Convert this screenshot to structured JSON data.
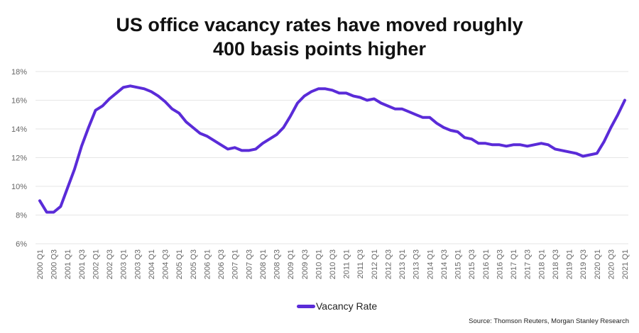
{
  "chart_data": {
    "type": "line",
    "title": [
      "US office vacancy rates have moved roughly",
      "400 basis points higher"
    ],
    "xlabel": "",
    "ylabel": "",
    "ylim": [
      6,
      18
    ],
    "yticks": [
      "6%",
      "8%",
      "10%",
      "12%",
      "14%",
      "16%",
      "18%"
    ],
    "ytick_values": [
      6,
      8,
      10,
      12,
      14,
      16,
      18
    ],
    "grid": true,
    "legend_placement": "bottom",
    "line_color": "#5a2bd8",
    "x_start": "2000 Q1",
    "x_end": "2021 Q1",
    "x_tick_step_quarters": 2,
    "series": [
      {
        "name": "Vacancy Rate",
        "values": [
          9.0,
          8.2,
          8.2,
          8.6,
          9.9,
          11.2,
          12.8,
          14.1,
          15.3,
          15.6,
          16.1,
          16.5,
          16.9,
          17.0,
          16.9,
          16.8,
          16.6,
          16.3,
          15.9,
          15.4,
          15.1,
          14.5,
          14.1,
          13.7,
          13.5,
          13.2,
          12.9,
          12.6,
          12.7,
          12.5,
          12.5,
          12.6,
          13.0,
          13.3,
          13.6,
          14.1,
          14.9,
          15.8,
          16.3,
          16.6,
          16.8,
          16.8,
          16.7,
          16.5,
          16.5,
          16.3,
          16.2,
          16.0,
          16.1,
          15.8,
          15.6,
          15.4,
          15.4,
          15.2,
          15.0,
          14.8,
          14.8,
          14.4,
          14.1,
          13.9,
          13.8,
          13.4,
          13.3,
          13.0,
          13.0,
          12.9,
          12.9,
          12.8,
          12.9,
          12.9,
          12.8,
          12.9,
          13.0,
          12.9,
          12.6,
          12.5,
          12.4,
          12.3,
          12.1,
          12.2,
          12.3,
          13.1,
          14.1,
          15.0,
          16.0
        ]
      }
    ],
    "source": "Source: Thomson Reuters, Morgan Stanley Research"
  }
}
